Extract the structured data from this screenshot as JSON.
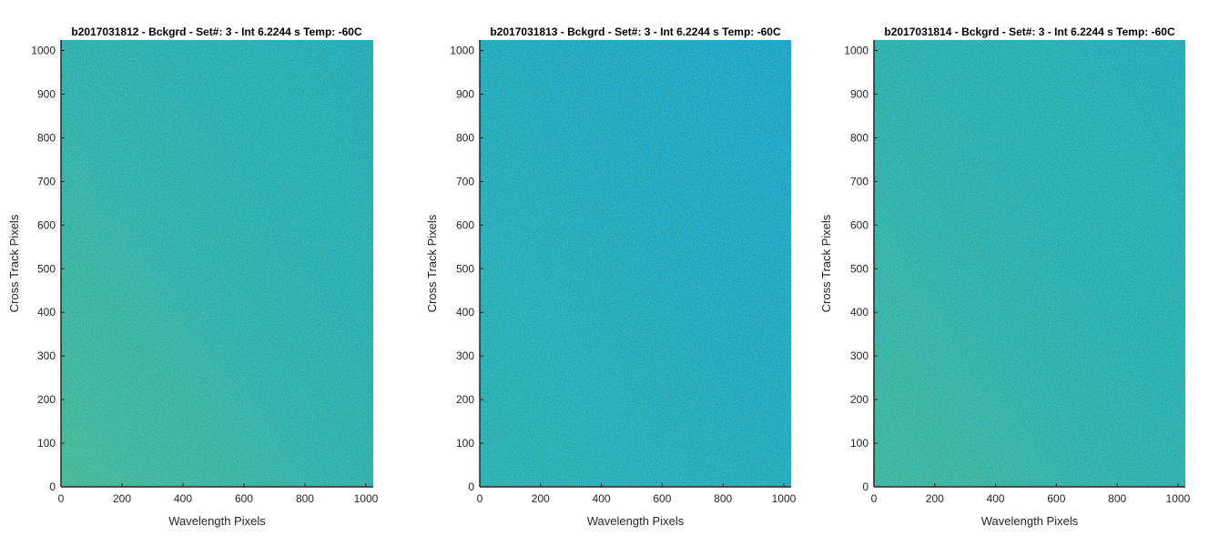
{
  "chart_data": [
    {
      "type": "heatmap",
      "title": "b2017031812 - Bckgrd - Set#: 3 - Int 6.2244 s Temp: -60C",
      "xlabel": "Wavelength Pixels",
      "ylabel": "Cross Track Pixels",
      "xlim": [
        0,
        1024
      ],
      "ylim": [
        0,
        1024
      ],
      "xticks": [
        0,
        200,
        400,
        600,
        800,
        1000
      ],
      "yticks": [
        0,
        100,
        200,
        300,
        400,
        500,
        600,
        700,
        800,
        900,
        1000
      ],
      "colormap": "parula",
      "colors": {
        "high": "#3db692",
        "low": "#1aa6b7",
        "mid": "#28adaa"
      },
      "gradient": "greenish-yellow speckle at low wavelength pixels, fading to teal toward high wavelength pixels"
    },
    {
      "type": "heatmap",
      "title": "b2017031813 - Bckgrd - Set#: 3 - Int 6.2244 s Temp: -60C",
      "xlabel": "Wavelength Pixels",
      "ylabel": "Cross Track Pixels",
      "xlim": [
        0,
        1024
      ],
      "ylim": [
        0,
        1024
      ],
      "xticks": [
        0,
        200,
        400,
        600,
        800,
        1000
      ],
      "yticks": [
        0,
        100,
        200,
        300,
        400,
        500,
        600,
        700,
        800,
        900,
        1000
      ],
      "colormap": "parula",
      "colors": {
        "high": "#24acb0",
        "low": "#119fc8",
        "mid": "#1aa6bc"
      },
      "gradient": "mostly blue-teal, slightly greener at low wavelength pixels, bluer at high wavelength pixels"
    },
    {
      "type": "heatmap",
      "title": "b2017031814 - Bckgrd - Set#: 3 - Int 6.2244 s Temp: -60C",
      "xlabel": "Wavelength Pixels",
      "ylabel": "Cross Track Pixels",
      "xlim": [
        0,
        1024
      ],
      "ylim": [
        0,
        1024
      ],
      "xticks": [
        0,
        200,
        400,
        600,
        800,
        1000
      ],
      "yticks": [
        0,
        100,
        200,
        300,
        400,
        500,
        600,
        700,
        800,
        900,
        1000
      ],
      "colormap": "parula",
      "colors": {
        "high": "#35b39c",
        "low": "#1aa6b9",
        "mid": "#25acac"
      },
      "gradient": "greenish-teal at low wavelength pixels, fading to blue-teal toward high wavelength pixels"
    }
  ]
}
